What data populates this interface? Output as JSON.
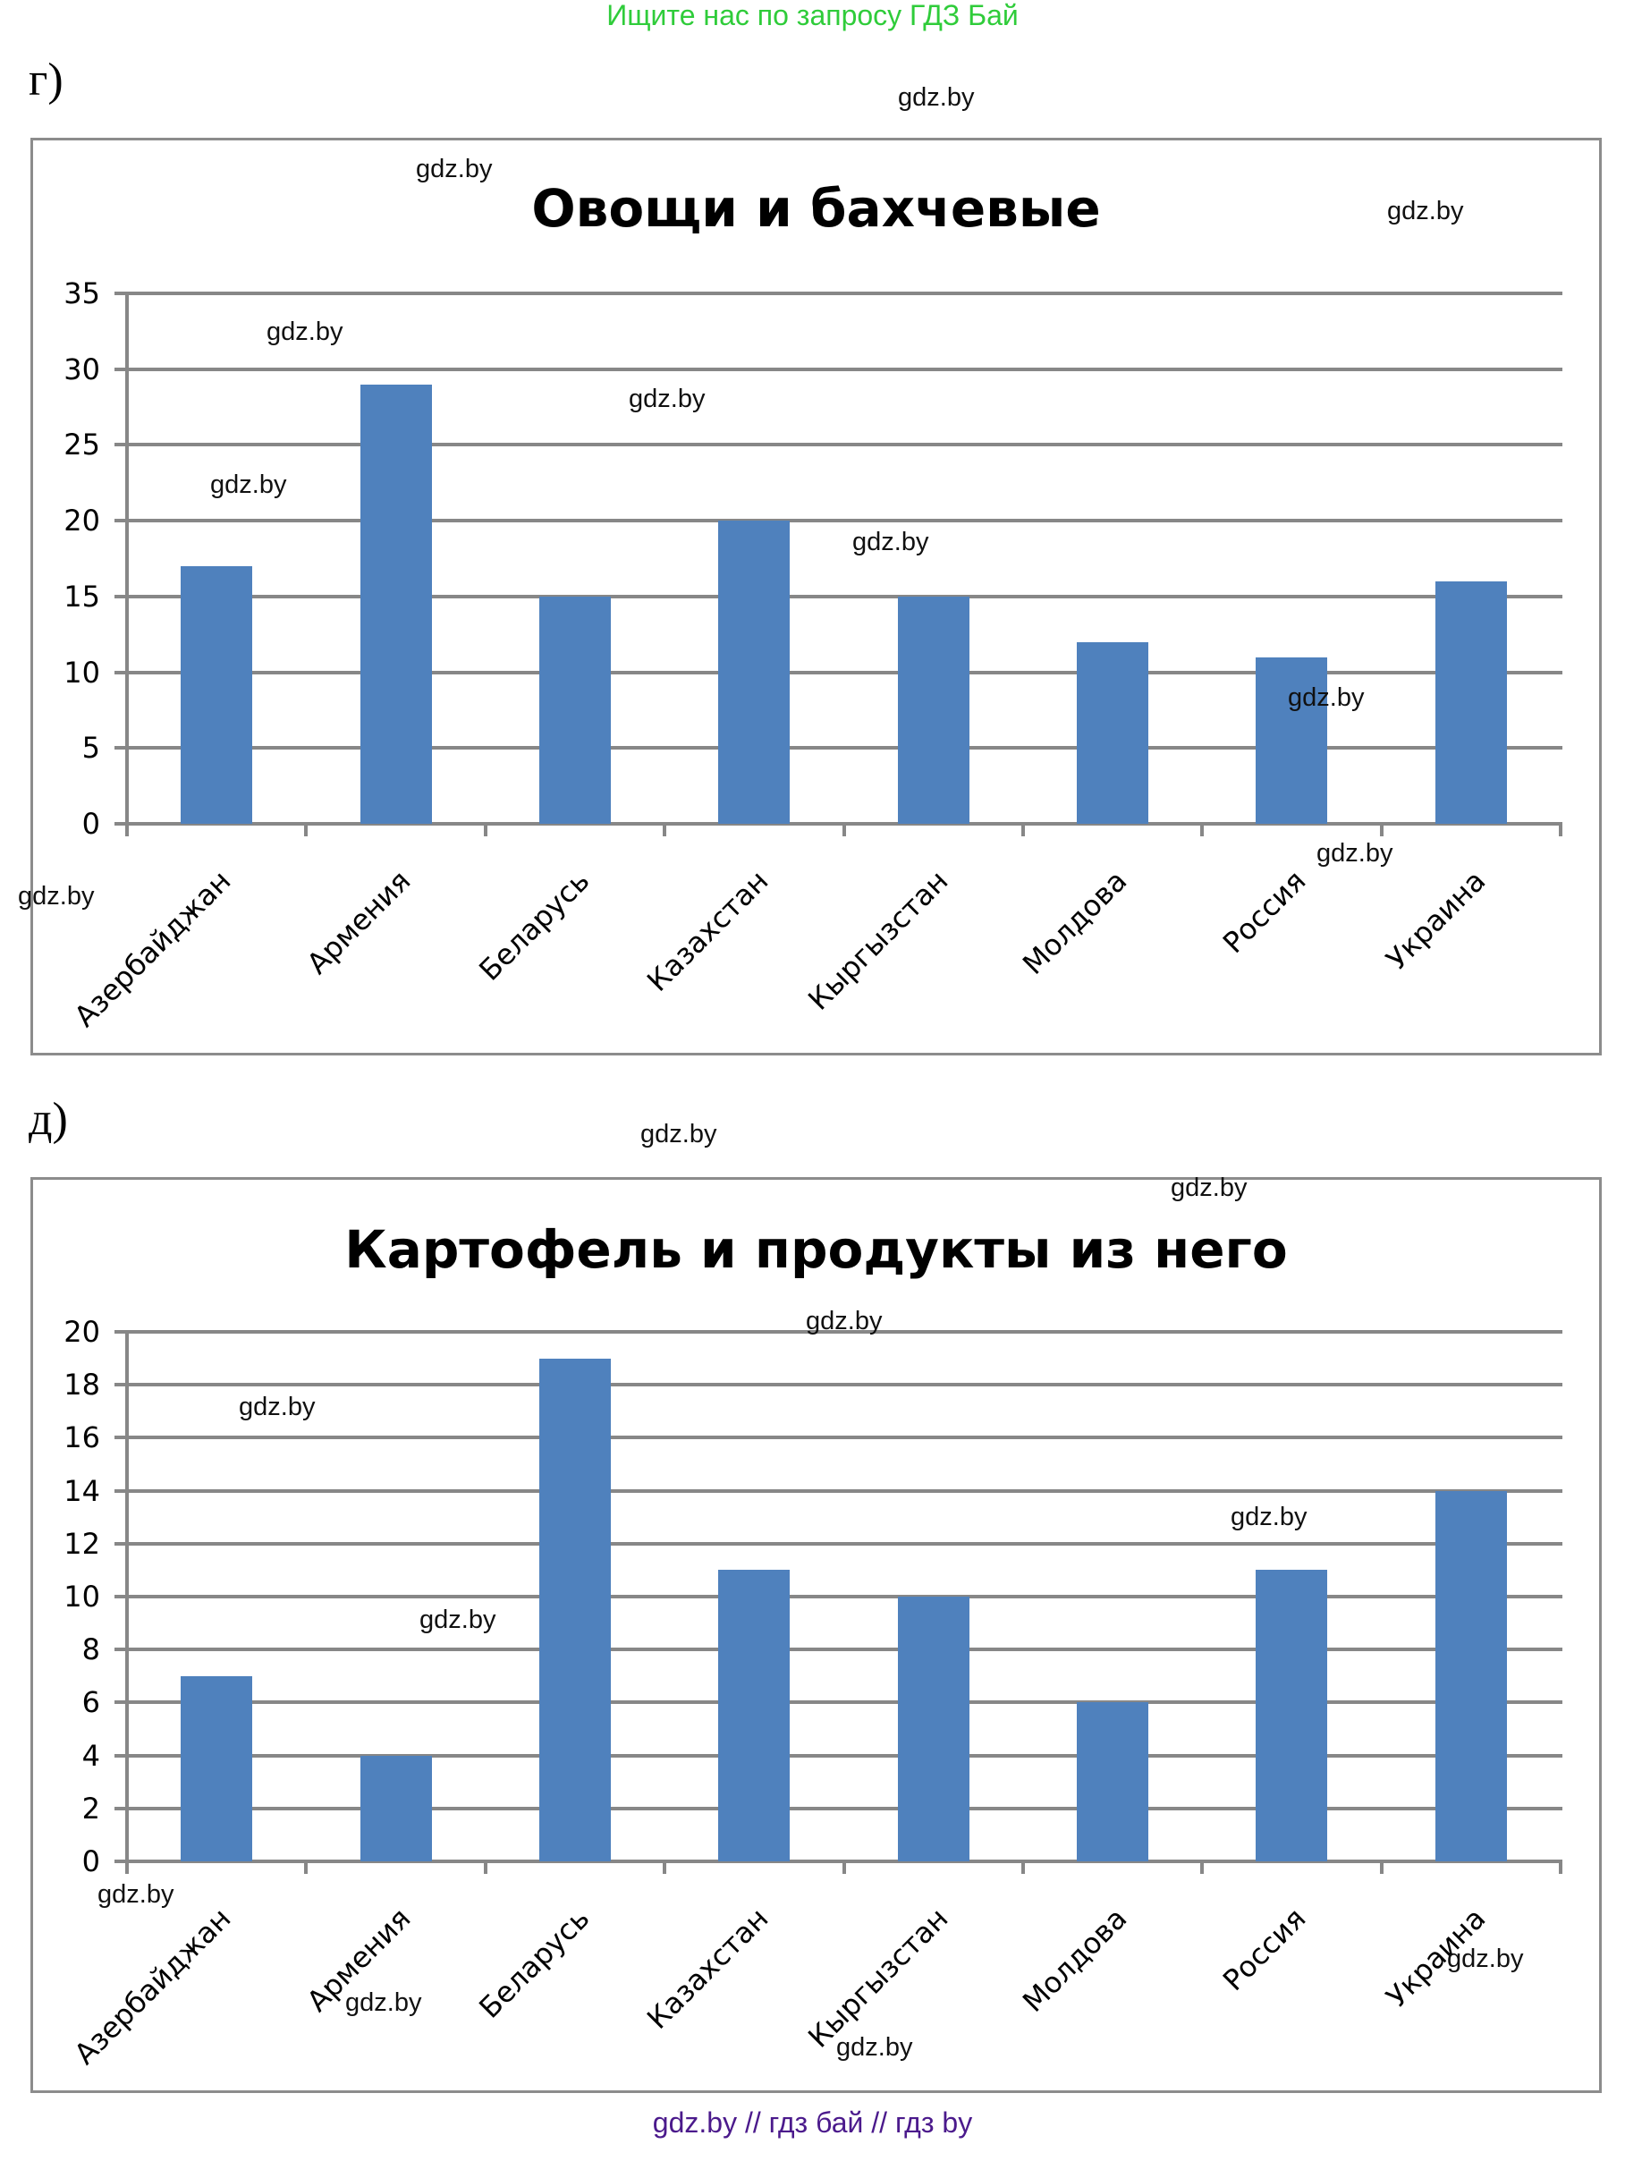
{
  "page": {
    "header_note": "Ищите нас по запросу ГДЗ Бай",
    "footer": "gdz.by  //  гдз бай  //  гдз by",
    "accent_colors": {
      "bar": "#4f81bd",
      "grid": "#878787",
      "header_note": "#2fcc3a",
      "footer": "#4b1a8c"
    }
  },
  "watermark": "gdz.by",
  "parts": [
    {
      "label": "г)"
    },
    {
      "label": "д)"
    }
  ],
  "chart_data": [
    {
      "type": "bar",
      "title": "Овощи и бахчевые",
      "categories": [
        "Азербайджан",
        "Армения",
        "Беларусь",
        "Казахстан",
        "Кыргызстан",
        "Молдова",
        "Россия",
        "Украина"
      ],
      "values": [
        17,
        29,
        15,
        20,
        15,
        12,
        11,
        16
      ],
      "xlabel": "",
      "ylabel": "",
      "ylim": [
        0,
        35
      ],
      "yticks": [
        0,
        5,
        10,
        15,
        20,
        25,
        30,
        35
      ],
      "grid": true,
      "legend": "none",
      "bar_color": "#4f81bd"
    },
    {
      "type": "bar",
      "title": "Картофель и продукты из него",
      "categories": [
        "Азербайджан",
        "Армения",
        "Беларусь",
        "Казахстан",
        "Кыргызстан",
        "Молдова",
        "Россия",
        "Украина"
      ],
      "values": [
        7,
        4,
        19,
        11,
        10,
        6,
        11,
        14
      ],
      "xlabel": "",
      "ylabel": "",
      "ylim": [
        0,
        20
      ],
      "yticks": [
        0,
        2,
        4,
        6,
        8,
        10,
        12,
        14,
        16,
        18,
        20
      ],
      "grid": true,
      "legend": "none",
      "bar_color": "#4f81bd"
    }
  ]
}
